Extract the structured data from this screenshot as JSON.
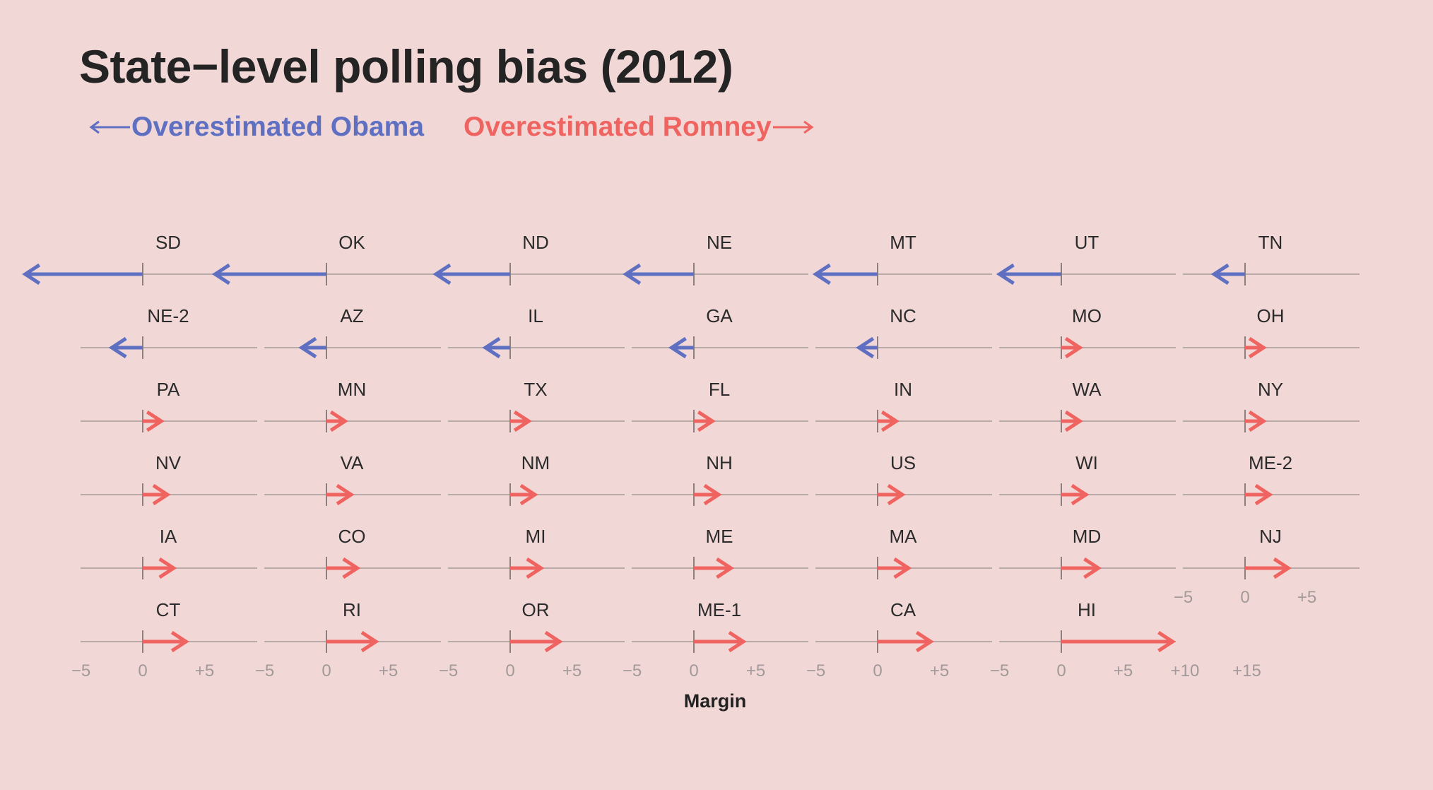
{
  "title": "State−level polling bias (2012)",
  "legend": {
    "obama_label": "Overestimated Obama",
    "romney_label": "Overestimated Romney",
    "obama_color": "#5f6fc1",
    "romney_color": "#ef6461"
  },
  "chart_data": {
    "type": "small-multiples-arrow",
    "title": "State−level polling bias (2012)",
    "xlabel": "Margin",
    "x_unit": "percentage points",
    "xlim": [
      -10,
      16
    ],
    "tick_values": [
      -5,
      0,
      5
    ],
    "tick_labels": [
      "−5",
      "0",
      "+5"
    ],
    "extended_tick_values": [
      -5,
      0,
      5,
      10,
      15
    ],
    "extended_tick_labels": [
      "−5",
      "0",
      "+5",
      "+10",
      "+15"
    ],
    "series": [
      {
        "name": "Overestimated Obama",
        "color": "#5f6fc1",
        "direction": "negative"
      },
      {
        "name": "Overestimated Romney",
        "color": "#ef6461",
        "direction": "positive"
      }
    ],
    "panels": [
      {
        "state": "SD",
        "bias": -9.5
      },
      {
        "state": "OK",
        "bias": -9.0
      },
      {
        "state": "ND",
        "bias": -6.0
      },
      {
        "state": "NE",
        "bias": -5.5
      },
      {
        "state": "MT",
        "bias": -5.0
      },
      {
        "state": "UT",
        "bias": -5.0
      },
      {
        "state": "TN",
        "bias": -2.5
      },
      {
        "state": "NE-2",
        "bias": -2.5
      },
      {
        "state": "AZ",
        "bias": -2.0
      },
      {
        "state": "IL",
        "bias": -2.0
      },
      {
        "state": "GA",
        "bias": -1.8
      },
      {
        "state": "NC",
        "bias": -1.5
      },
      {
        "state": "MO",
        "bias": 1.5
      },
      {
        "state": "OH",
        "bias": 1.5
      },
      {
        "state": "PA",
        "bias": 1.5
      },
      {
        "state": "MN",
        "bias": 1.5
      },
      {
        "state": "TX",
        "bias": 1.5
      },
      {
        "state": "FL",
        "bias": 1.5
      },
      {
        "state": "IN",
        "bias": 1.5
      },
      {
        "state": "WA",
        "bias": 1.5
      },
      {
        "state": "NY",
        "bias": 1.5
      },
      {
        "state": "NV",
        "bias": 2.0
      },
      {
        "state": "VA",
        "bias": 2.0
      },
      {
        "state": "NM",
        "bias": 2.0
      },
      {
        "state": "NH",
        "bias": 2.0
      },
      {
        "state": "US",
        "bias": 2.0
      },
      {
        "state": "WI",
        "bias": 2.0
      },
      {
        "state": "ME-2",
        "bias": 2.0
      },
      {
        "state": "IA",
        "bias": 2.5
      },
      {
        "state": "CO",
        "bias": 2.5
      },
      {
        "state": "MI",
        "bias": 2.5
      },
      {
        "state": "ME",
        "bias": 3.0
      },
      {
        "state": "MA",
        "bias": 2.5
      },
      {
        "state": "MD",
        "bias": 3.0
      },
      {
        "state": "NJ",
        "bias": 3.5
      },
      {
        "state": "CT",
        "bias": 3.5
      },
      {
        "state": "RI",
        "bias": 4.0
      },
      {
        "state": "OR",
        "bias": 4.0
      },
      {
        "state": "ME-1",
        "bias": 4.0
      },
      {
        "state": "CA",
        "bias": 4.3
      },
      {
        "state": "HI",
        "bias": 9.0
      }
    ]
  }
}
